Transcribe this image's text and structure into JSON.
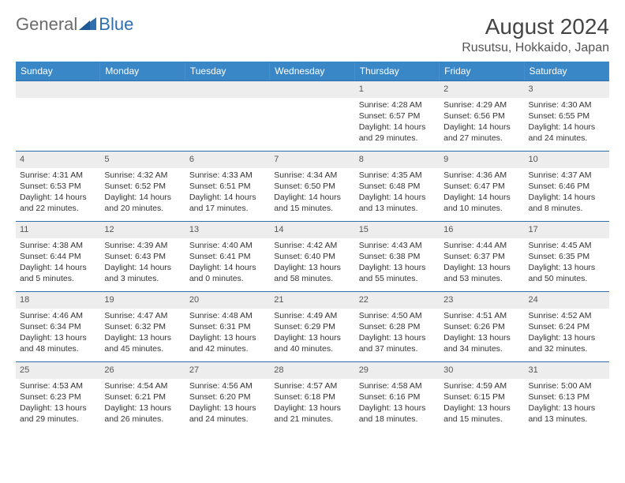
{
  "brand": {
    "part1": "General",
    "part2": "Blue"
  },
  "title": "August 2024",
  "location": "Rusutsu, Hokkaido, Japan",
  "colors": {
    "header_bg": "#3a87c8",
    "header_text": "#ffffff",
    "daynum_bg": "#ededed",
    "week_border": "#2f6fb0",
    "logo_gray": "#6b6b6b",
    "logo_blue": "#2f6fb0"
  },
  "weekdays": [
    "Sunday",
    "Monday",
    "Tuesday",
    "Wednesday",
    "Thursday",
    "Friday",
    "Saturday"
  ],
  "weeks": [
    [
      {
        "n": "",
        "empty": true
      },
      {
        "n": "",
        "empty": true
      },
      {
        "n": "",
        "empty": true
      },
      {
        "n": "",
        "empty": true
      },
      {
        "n": "1",
        "sunrise": "4:28 AM",
        "sunset": "6:57 PM",
        "daylight": "14 hours and 29 minutes."
      },
      {
        "n": "2",
        "sunrise": "4:29 AM",
        "sunset": "6:56 PM",
        "daylight": "14 hours and 27 minutes."
      },
      {
        "n": "3",
        "sunrise": "4:30 AM",
        "sunset": "6:55 PM",
        "daylight": "14 hours and 24 minutes."
      }
    ],
    [
      {
        "n": "4",
        "sunrise": "4:31 AM",
        "sunset": "6:53 PM",
        "daylight": "14 hours and 22 minutes."
      },
      {
        "n": "5",
        "sunrise": "4:32 AM",
        "sunset": "6:52 PM",
        "daylight": "14 hours and 20 minutes."
      },
      {
        "n": "6",
        "sunrise": "4:33 AM",
        "sunset": "6:51 PM",
        "daylight": "14 hours and 17 minutes."
      },
      {
        "n": "7",
        "sunrise": "4:34 AM",
        "sunset": "6:50 PM",
        "daylight": "14 hours and 15 minutes."
      },
      {
        "n": "8",
        "sunrise": "4:35 AM",
        "sunset": "6:48 PM",
        "daylight": "14 hours and 13 minutes."
      },
      {
        "n": "9",
        "sunrise": "4:36 AM",
        "sunset": "6:47 PM",
        "daylight": "14 hours and 10 minutes."
      },
      {
        "n": "10",
        "sunrise": "4:37 AM",
        "sunset": "6:46 PM",
        "daylight": "14 hours and 8 minutes."
      }
    ],
    [
      {
        "n": "11",
        "sunrise": "4:38 AM",
        "sunset": "6:44 PM",
        "daylight": "14 hours and 5 minutes."
      },
      {
        "n": "12",
        "sunrise": "4:39 AM",
        "sunset": "6:43 PM",
        "daylight": "14 hours and 3 minutes."
      },
      {
        "n": "13",
        "sunrise": "4:40 AM",
        "sunset": "6:41 PM",
        "daylight": "14 hours and 0 minutes."
      },
      {
        "n": "14",
        "sunrise": "4:42 AM",
        "sunset": "6:40 PM",
        "daylight": "13 hours and 58 minutes."
      },
      {
        "n": "15",
        "sunrise": "4:43 AM",
        "sunset": "6:38 PM",
        "daylight": "13 hours and 55 minutes."
      },
      {
        "n": "16",
        "sunrise": "4:44 AM",
        "sunset": "6:37 PM",
        "daylight": "13 hours and 53 minutes."
      },
      {
        "n": "17",
        "sunrise": "4:45 AM",
        "sunset": "6:35 PM",
        "daylight": "13 hours and 50 minutes."
      }
    ],
    [
      {
        "n": "18",
        "sunrise": "4:46 AM",
        "sunset": "6:34 PM",
        "daylight": "13 hours and 48 minutes."
      },
      {
        "n": "19",
        "sunrise": "4:47 AM",
        "sunset": "6:32 PM",
        "daylight": "13 hours and 45 minutes."
      },
      {
        "n": "20",
        "sunrise": "4:48 AM",
        "sunset": "6:31 PM",
        "daylight": "13 hours and 42 minutes."
      },
      {
        "n": "21",
        "sunrise": "4:49 AM",
        "sunset": "6:29 PM",
        "daylight": "13 hours and 40 minutes."
      },
      {
        "n": "22",
        "sunrise": "4:50 AM",
        "sunset": "6:28 PM",
        "daylight": "13 hours and 37 minutes."
      },
      {
        "n": "23",
        "sunrise": "4:51 AM",
        "sunset": "6:26 PM",
        "daylight": "13 hours and 34 minutes."
      },
      {
        "n": "24",
        "sunrise": "4:52 AM",
        "sunset": "6:24 PM",
        "daylight": "13 hours and 32 minutes."
      }
    ],
    [
      {
        "n": "25",
        "sunrise": "4:53 AM",
        "sunset": "6:23 PM",
        "daylight": "13 hours and 29 minutes."
      },
      {
        "n": "26",
        "sunrise": "4:54 AM",
        "sunset": "6:21 PM",
        "daylight": "13 hours and 26 minutes."
      },
      {
        "n": "27",
        "sunrise": "4:56 AM",
        "sunset": "6:20 PM",
        "daylight": "13 hours and 24 minutes."
      },
      {
        "n": "28",
        "sunrise": "4:57 AM",
        "sunset": "6:18 PM",
        "daylight": "13 hours and 21 minutes."
      },
      {
        "n": "29",
        "sunrise": "4:58 AM",
        "sunset": "6:16 PM",
        "daylight": "13 hours and 18 minutes."
      },
      {
        "n": "30",
        "sunrise": "4:59 AM",
        "sunset": "6:15 PM",
        "daylight": "13 hours and 15 minutes."
      },
      {
        "n": "31",
        "sunrise": "5:00 AM",
        "sunset": "6:13 PM",
        "daylight": "13 hours and 13 minutes."
      }
    ]
  ]
}
